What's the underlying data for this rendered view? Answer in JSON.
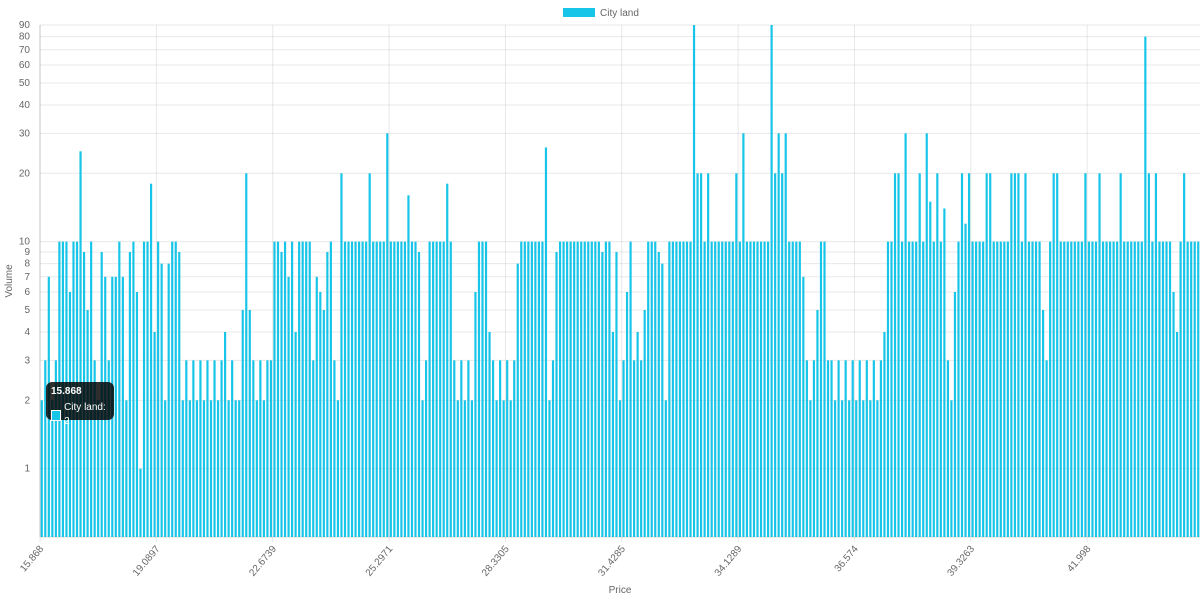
{
  "chart_data": {
    "type": "bar",
    "y_scale": "log",
    "xlabel": "Price",
    "ylabel": "Volume",
    "ylim": [
      0.5,
      90
    ],
    "y_ticks": [
      1,
      2,
      3,
      4,
      5,
      6,
      7,
      8,
      9,
      10,
      20,
      30,
      40,
      50,
      60,
      70,
      80,
      90
    ],
    "x_tick_labels": [
      "15.868",
      "19.0897",
      "22.6739",
      "25.2971",
      "28.3305",
      "31.4285",
      "34.1289",
      "36.574",
      "39.3263",
      "41.998"
    ],
    "grid": true,
    "legend_position": "top-center",
    "series": [
      {
        "name": "City land",
        "color": "#17c5e8",
        "values": [
          2,
          3,
          7,
          2,
          3,
          10,
          10,
          10,
          6,
          10,
          10,
          25,
          9,
          5,
          10,
          3,
          2,
          9,
          7,
          3,
          7,
          7,
          10,
          7,
          2,
          9,
          10,
          6,
          1,
          10,
          10,
          18,
          4,
          10,
          8,
          2,
          8,
          10,
          10,
          9,
          2,
          3,
          2,
          3,
          2,
          3,
          2,
          3,
          2,
          3,
          2,
          3,
          4,
          2,
          3,
          2,
          2,
          5,
          20,
          5,
          3,
          2,
          3,
          2,
          3,
          3,
          10,
          10,
          9,
          10,
          7,
          10,
          4,
          10,
          10,
          10,
          10,
          3,
          7,
          6,
          5,
          9,
          10,
          3,
          2,
          20,
          10,
          10,
          10,
          10,
          10,
          10,
          10,
          20,
          10,
          10,
          10,
          10,
          30,
          10,
          10,
          10,
          10,
          10,
          16,
          10,
          10,
          9,
          2,
          3,
          10,
          10,
          10,
          10,
          10,
          18,
          10,
          3,
          2,
          3,
          2,
          3,
          2,
          6,
          10,
          10,
          10,
          4,
          3,
          2,
          3,
          2,
          3,
          2,
          3,
          8,
          10,
          10,
          10,
          10,
          10,
          10,
          10,
          26,
          2,
          3,
          9,
          10,
          10,
          10,
          10,
          10,
          10,
          10,
          10,
          10,
          10,
          10,
          10,
          9,
          10,
          10,
          4,
          9,
          2,
          3,
          6,
          10,
          3,
          4,
          3,
          5,
          10,
          10,
          10,
          9,
          8,
          2,
          10,
          10,
          10,
          10,
          10,
          10,
          10,
          90,
          20,
          20,
          10,
          20,
          10,
          10,
          10,
          10,
          10,
          10,
          10,
          20,
          10,
          30,
          10,
          10,
          10,
          10,
          10,
          10,
          10,
          90,
          20,
          30,
          20,
          30,
          10,
          10,
          10,
          10,
          7,
          3,
          2,
          3,
          5,
          10,
          10,
          3,
          3,
          2,
          3,
          2,
          3,
          2,
          3,
          2,
          3,
          2,
          3,
          2,
          3,
          2,
          3,
          4,
          10,
          10,
          20,
          20,
          10,
          30,
          10,
          10,
          10,
          20,
          10,
          30,
          15,
          10,
          20,
          10,
          14,
          3,
          2,
          6,
          10,
          20,
          12,
          20,
          10,
          10,
          10,
          10,
          20,
          20,
          10,
          10,
          10,
          10,
          10,
          20,
          20,
          20,
          10,
          20,
          10,
          10,
          10,
          10,
          5,
          3,
          10,
          20,
          20,
          10,
          10,
          10,
          10,
          10,
          10,
          10,
          20,
          10,
          10,
          10,
          20,
          10,
          10,
          10,
          10,
          10,
          20,
          10,
          10,
          10,
          10,
          10,
          10,
          80,
          20,
          10,
          20,
          10,
          10,
          10,
          10,
          6,
          4,
          10,
          20,
          10,
          10,
          10,
          10
        ]
      }
    ],
    "tooltip": {
      "title": "15.868",
      "label": "City land: 2"
    }
  }
}
